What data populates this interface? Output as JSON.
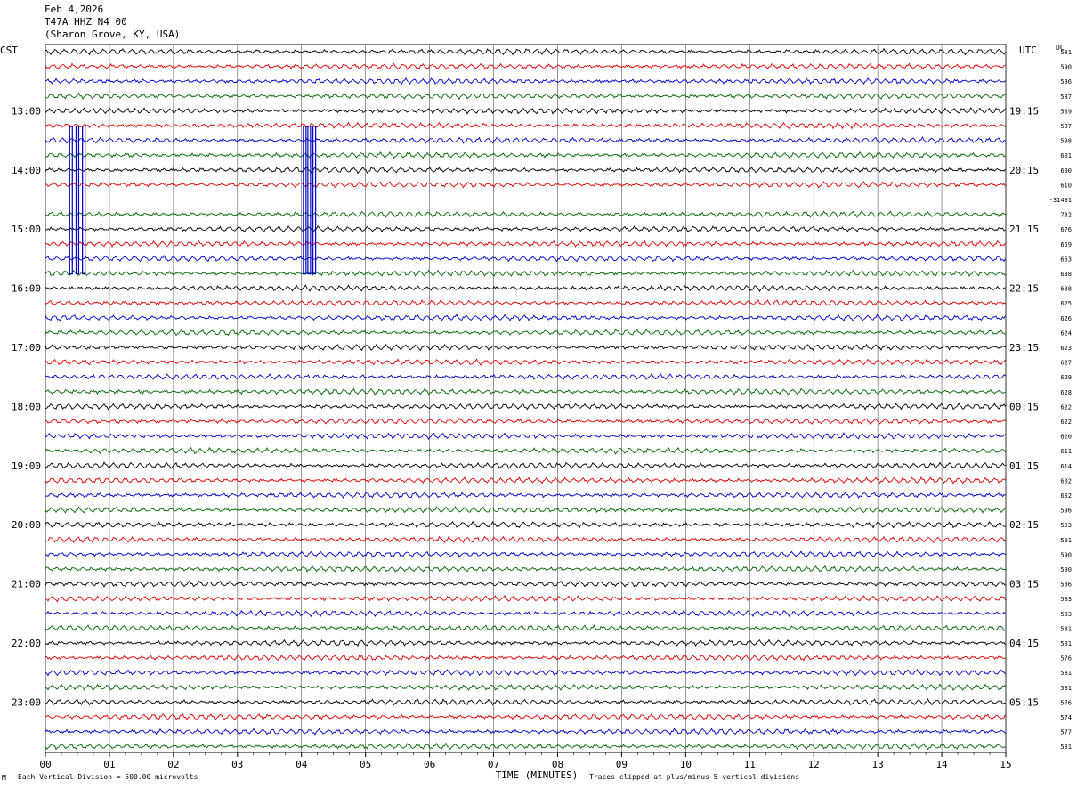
{
  "header": {
    "date": "Feb 4,2026",
    "station": "T47A HHZ N4 00",
    "location": "(Sharon Grove, KY, USA)"
  },
  "left_tz": "CST",
  "right_tz": "UTC",
  "dc_label": "DC",
  "footer": {
    "scale": "Each Vertical Division =  500.00 microvolts",
    "clip": "Traces clipped at plus/minus 5 vertical divisions",
    "mark": "M"
  },
  "chart_data": {
    "type": "line",
    "xlabel": "TIME (MINUTES)",
    "xlim": [
      0,
      15
    ],
    "x_ticks": [
      "00",
      "01",
      "02",
      "03",
      "04",
      "05",
      "06",
      "07",
      "08",
      "09",
      "10",
      "11",
      "12",
      "13",
      "14",
      "15"
    ],
    "traces_per_hour": 4,
    "minutes_per_trace": 15,
    "trace_colors": [
      "#000000",
      "#e00000",
      "#0000cc",
      "#006600"
    ],
    "left_hour_labels": [
      "13:00",
      "14:00",
      "15:00",
      "16:00",
      "17:00",
      "18:00",
      "19:00",
      "20:00",
      "21:00",
      "22:00",
      "23:00"
    ],
    "right_hour_labels": [
      "19:15",
      "20:15",
      "21:15",
      "22:15",
      "23:15",
      "00:15",
      "01:15",
      "02:15",
      "03:15",
      "04:15",
      "05:15"
    ],
    "dc_offsets": [
      "581",
      "590",
      "586",
      "587",
      "589",
      "587",
      "598",
      "601",
      "600",
      "610",
      "-31491",
      "732",
      "676",
      "659",
      "653",
      "638",
      "638",
      "625",
      "626",
      "624",
      "623",
      "627",
      "629",
      "628",
      "622",
      "622",
      "620",
      "611",
      "614",
      "602",
      "602",
      "596",
      "593",
      "591",
      "590",
      "590",
      "586",
      "583",
      "583",
      "581",
      "581",
      "576",
      "581",
      "581",
      "576",
      "574",
      "577",
      "581"
    ],
    "clipped_events": [
      {
        "trace": 6,
        "minutes": [
          0.4,
          0.5,
          0.6
        ]
      },
      {
        "trace": 6,
        "minutes": [
          4.05,
          4.12,
          4.2
        ]
      }
    ],
    "flat_traces": [
      10
    ]
  }
}
